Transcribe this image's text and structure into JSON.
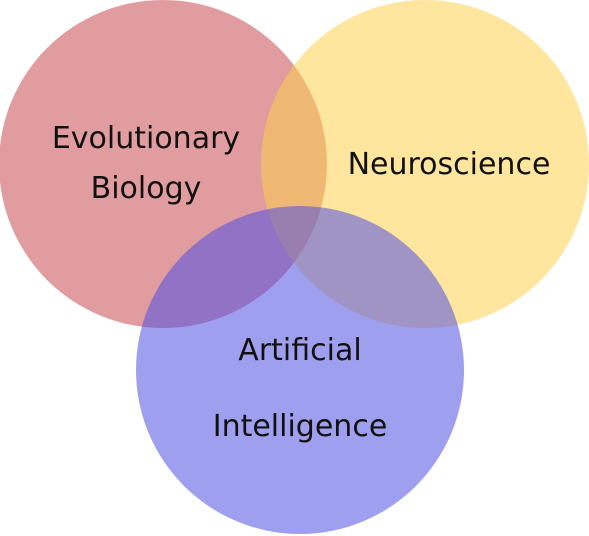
{
  "diagram": {
    "type": "venn",
    "circles": [
      {
        "key": "evolutionary_biology",
        "label_lines": [
          "Evolutionary",
          "Biology"
        ],
        "color": "#c94a52"
      },
      {
        "key": "neuroscience",
        "label_lines": [
          "Neuroscience"
        ],
        "color": "#fed14f"
      },
      {
        "key": "artificial_intelligence",
        "label_lines": [
          "Artificial",
          "Intelligence"
        ],
        "color": "#5050e1"
      }
    ]
  }
}
